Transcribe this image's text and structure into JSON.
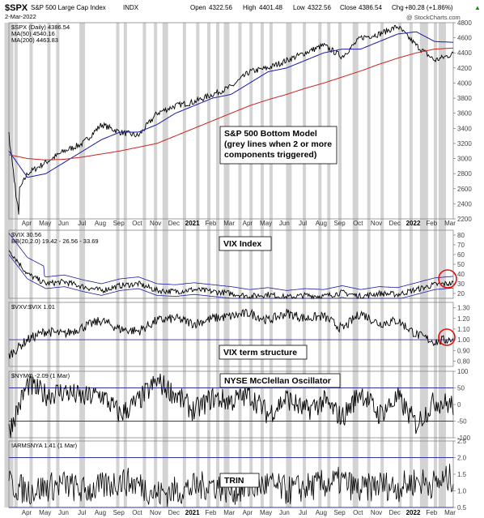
{
  "header": {
    "symbol": "$SPX",
    "name": "S&P 500 Large Cap Index",
    "exchange": "INDX",
    "date": "2-Mar-2022",
    "open_label": "Open",
    "open": "4322.56",
    "high_label": "High",
    "high": "4401.48",
    "low_label": "Low",
    "low": "4322.56",
    "close_label": "Close",
    "close": "4386.54",
    "chg_label": "Chg",
    "chg": "+80.28 (+1.86%)",
    "chg_arrow": "▲",
    "watermark": "@ StockCharts.com"
  },
  "colors": {
    "price": "#000000",
    "ma50": "#1a1aa6",
    "ma200": "#cc2222",
    "bb": "#1a1aa6",
    "ref_line": "#3030a0",
    "grey_band": "#d3d3d3",
    "circle": "#e01010"
  },
  "panels": {
    "spx": {
      "legend": [
        "$SPX (Daily) 4386.54",
        "MA(50) 4540.16",
        "MA(200) 4463.83"
      ],
      "annotation": [
        "S&P 500 Bottom Model",
        "(grey lines when 2 or more",
        "components triggered)"
      ],
      "y_ticks": [
        "4800",
        "4600",
        "4400",
        "4200",
        "4000",
        "3800",
        "3600",
        "3400",
        "3200",
        "3000",
        "2800",
        "2600",
        "2400",
        "2200"
      ]
    },
    "vix": {
      "legend": [
        "$VIX 30.56",
        "BB(20,2.0) 19.42 - 26.56 - 33.69"
      ],
      "annotation": "VIX Index",
      "y_ticks": [
        "80",
        "70",
        "60",
        "50",
        "40",
        "30",
        "20"
      ]
    },
    "vxv": {
      "legend": "$VXV:$VIX 1.01",
      "annotation": "VIX term structure",
      "y_ticks": [
        "1.30",
        "1.20",
        "1.10",
        "1.00",
        "0.90",
        "0.80"
      ]
    },
    "nymo": {
      "legend": "$NYMO -2.09 (1 Mar)",
      "annotation": "NYSE McClellan Oscillator",
      "y_ticks": [
        "100",
        "50",
        "0",
        "-50",
        "-100"
      ]
    },
    "trin": {
      "legend": "!ARMSNYA 1.41 (1 Mar)",
      "annotation": "TRIN",
      "y_ticks": [
        "2.5",
        "2.0",
        "1.5",
        "1.0",
        "0.5"
      ]
    }
  },
  "x_axis": [
    {
      "label": "Apr",
      "bold": false
    },
    {
      "label": "May",
      "bold": false
    },
    {
      "label": "Jun",
      "bold": false
    },
    {
      "label": "Jul",
      "bold": false
    },
    {
      "label": "Aug",
      "bold": false
    },
    {
      "label": "Sep",
      "bold": false
    },
    {
      "label": "Oct",
      "bold": false
    },
    {
      "label": "Nov",
      "bold": false
    },
    {
      "label": "Dec",
      "bold": false
    },
    {
      "label": "2021",
      "bold": true
    },
    {
      "label": "Feb",
      "bold": false
    },
    {
      "label": "Mar",
      "bold": false
    },
    {
      "label": "Apr",
      "bold": false
    },
    {
      "label": "May",
      "bold": false
    },
    {
      "label": "Jun",
      "bold": false
    },
    {
      "label": "Jul",
      "bold": false
    },
    {
      "label": "Aug",
      "bold": false
    },
    {
      "label": "Sep",
      "bold": false
    },
    {
      "label": "Oct",
      "bold": false
    },
    {
      "label": "Nov",
      "bold": false
    },
    {
      "label": "Dec",
      "bold": false
    },
    {
      "label": "2022",
      "bold": true
    },
    {
      "label": "Feb",
      "bold": false
    },
    {
      "label": "Mar",
      "bold": false
    }
  ],
  "chart_data": {
    "type": "line",
    "title": "S&P 500 Large Cap Index",
    "x_range": [
      "2020-03",
      "2022-03"
    ],
    "series": [
      {
        "name": "$SPX (Daily)",
        "x": [
          "2020-03",
          "2020-04",
          "2020-05",
          "2020-06",
          "2020-07",
          "2020-08",
          "2020-09",
          "2020-10",
          "2020-11",
          "2020-12",
          "2021-01",
          "2021-02",
          "2021-03",
          "2021-04",
          "2021-05",
          "2021-06",
          "2021-07",
          "2021-08",
          "2021-09",
          "2021-10",
          "2021-11",
          "2021-12",
          "2022-01",
          "2022-02",
          "2022-03"
        ],
        "values": [
          2300,
          2800,
          2950,
          3100,
          3200,
          3450,
          3350,
          3300,
          3600,
          3700,
          3750,
          3850,
          3950,
          4150,
          4200,
          4300,
          4400,
          4500,
          4350,
          4600,
          4650,
          4750,
          4500,
          4300,
          4386.54
        ]
      },
      {
        "name": "MA(50)",
        "values": [
          3100,
          2750,
          2800,
          2950,
          3100,
          3250,
          3350,
          3350,
          3450,
          3600,
          3700,
          3800,
          3850,
          4000,
          4150,
          4200,
          4300,
          4400,
          4450,
          4450,
          4550,
          4650,
          4680,
          4550,
          4540.16
        ]
      },
      {
        "name": "MA(200)",
        "values": [
          3050,
          3000,
          2980,
          2990,
          3020,
          3060,
          3100,
          3150,
          3200,
          3300,
          3400,
          3500,
          3600,
          3700,
          3780,
          3850,
          3930,
          4000,
          4080,
          4160,
          4250,
          4330,
          4400,
          4450,
          4463.83
        ]
      },
      {
        "name": "$VIX",
        "values": [
          65,
          40,
          30,
          32,
          27,
          23,
          28,
          30,
          23,
          22,
          24,
          22,
          20,
          17,
          19,
          16,
          18,
          17,
          21,
          17,
          20,
          19,
          24,
          29,
          30.56
        ]
      },
      {
        "name": "$VXV:$VIX",
        "values": [
          0.85,
          1.0,
          1.08,
          1.05,
          1.12,
          1.18,
          1.1,
          1.08,
          1.18,
          1.2,
          1.15,
          1.2,
          1.22,
          1.25,
          1.18,
          1.25,
          1.2,
          1.22,
          1.1,
          1.25,
          1.15,
          1.18,
          1.05,
          0.98,
          1.01
        ]
      },
      {
        "name": "$NYMO",
        "values": [
          -80,
          60,
          30,
          40,
          20,
          30,
          -30,
          10,
          70,
          30,
          -20,
          20,
          10,
          30,
          -30,
          20,
          -20,
          10,
          -40,
          40,
          -30,
          20,
          -60,
          10,
          -2.09
        ]
      },
      {
        "name": "!ARMSNYA",
        "values": [
          1.2,
          1.0,
          1.1,
          1.2,
          1.0,
          1.1,
          1.3,
          1.2,
          0.9,
          1.0,
          1.1,
          1.2,
          1.0,
          1.1,
          1.2,
          1.0,
          1.1,
          1.2,
          1.3,
          1.0,
          1.2,
          1.1,
          1.3,
          1.2,
          1.41
        ]
      }
    ],
    "ylim_spx": [
      2200,
      4800
    ],
    "ylim_vix": [
      15,
      85
    ],
    "ylim_vxv": [
      0.75,
      1.35
    ],
    "ylim_nymo": [
      -100,
      100
    ],
    "ylim_trin": [
      0.5,
      2.5
    ],
    "grid": false
  }
}
